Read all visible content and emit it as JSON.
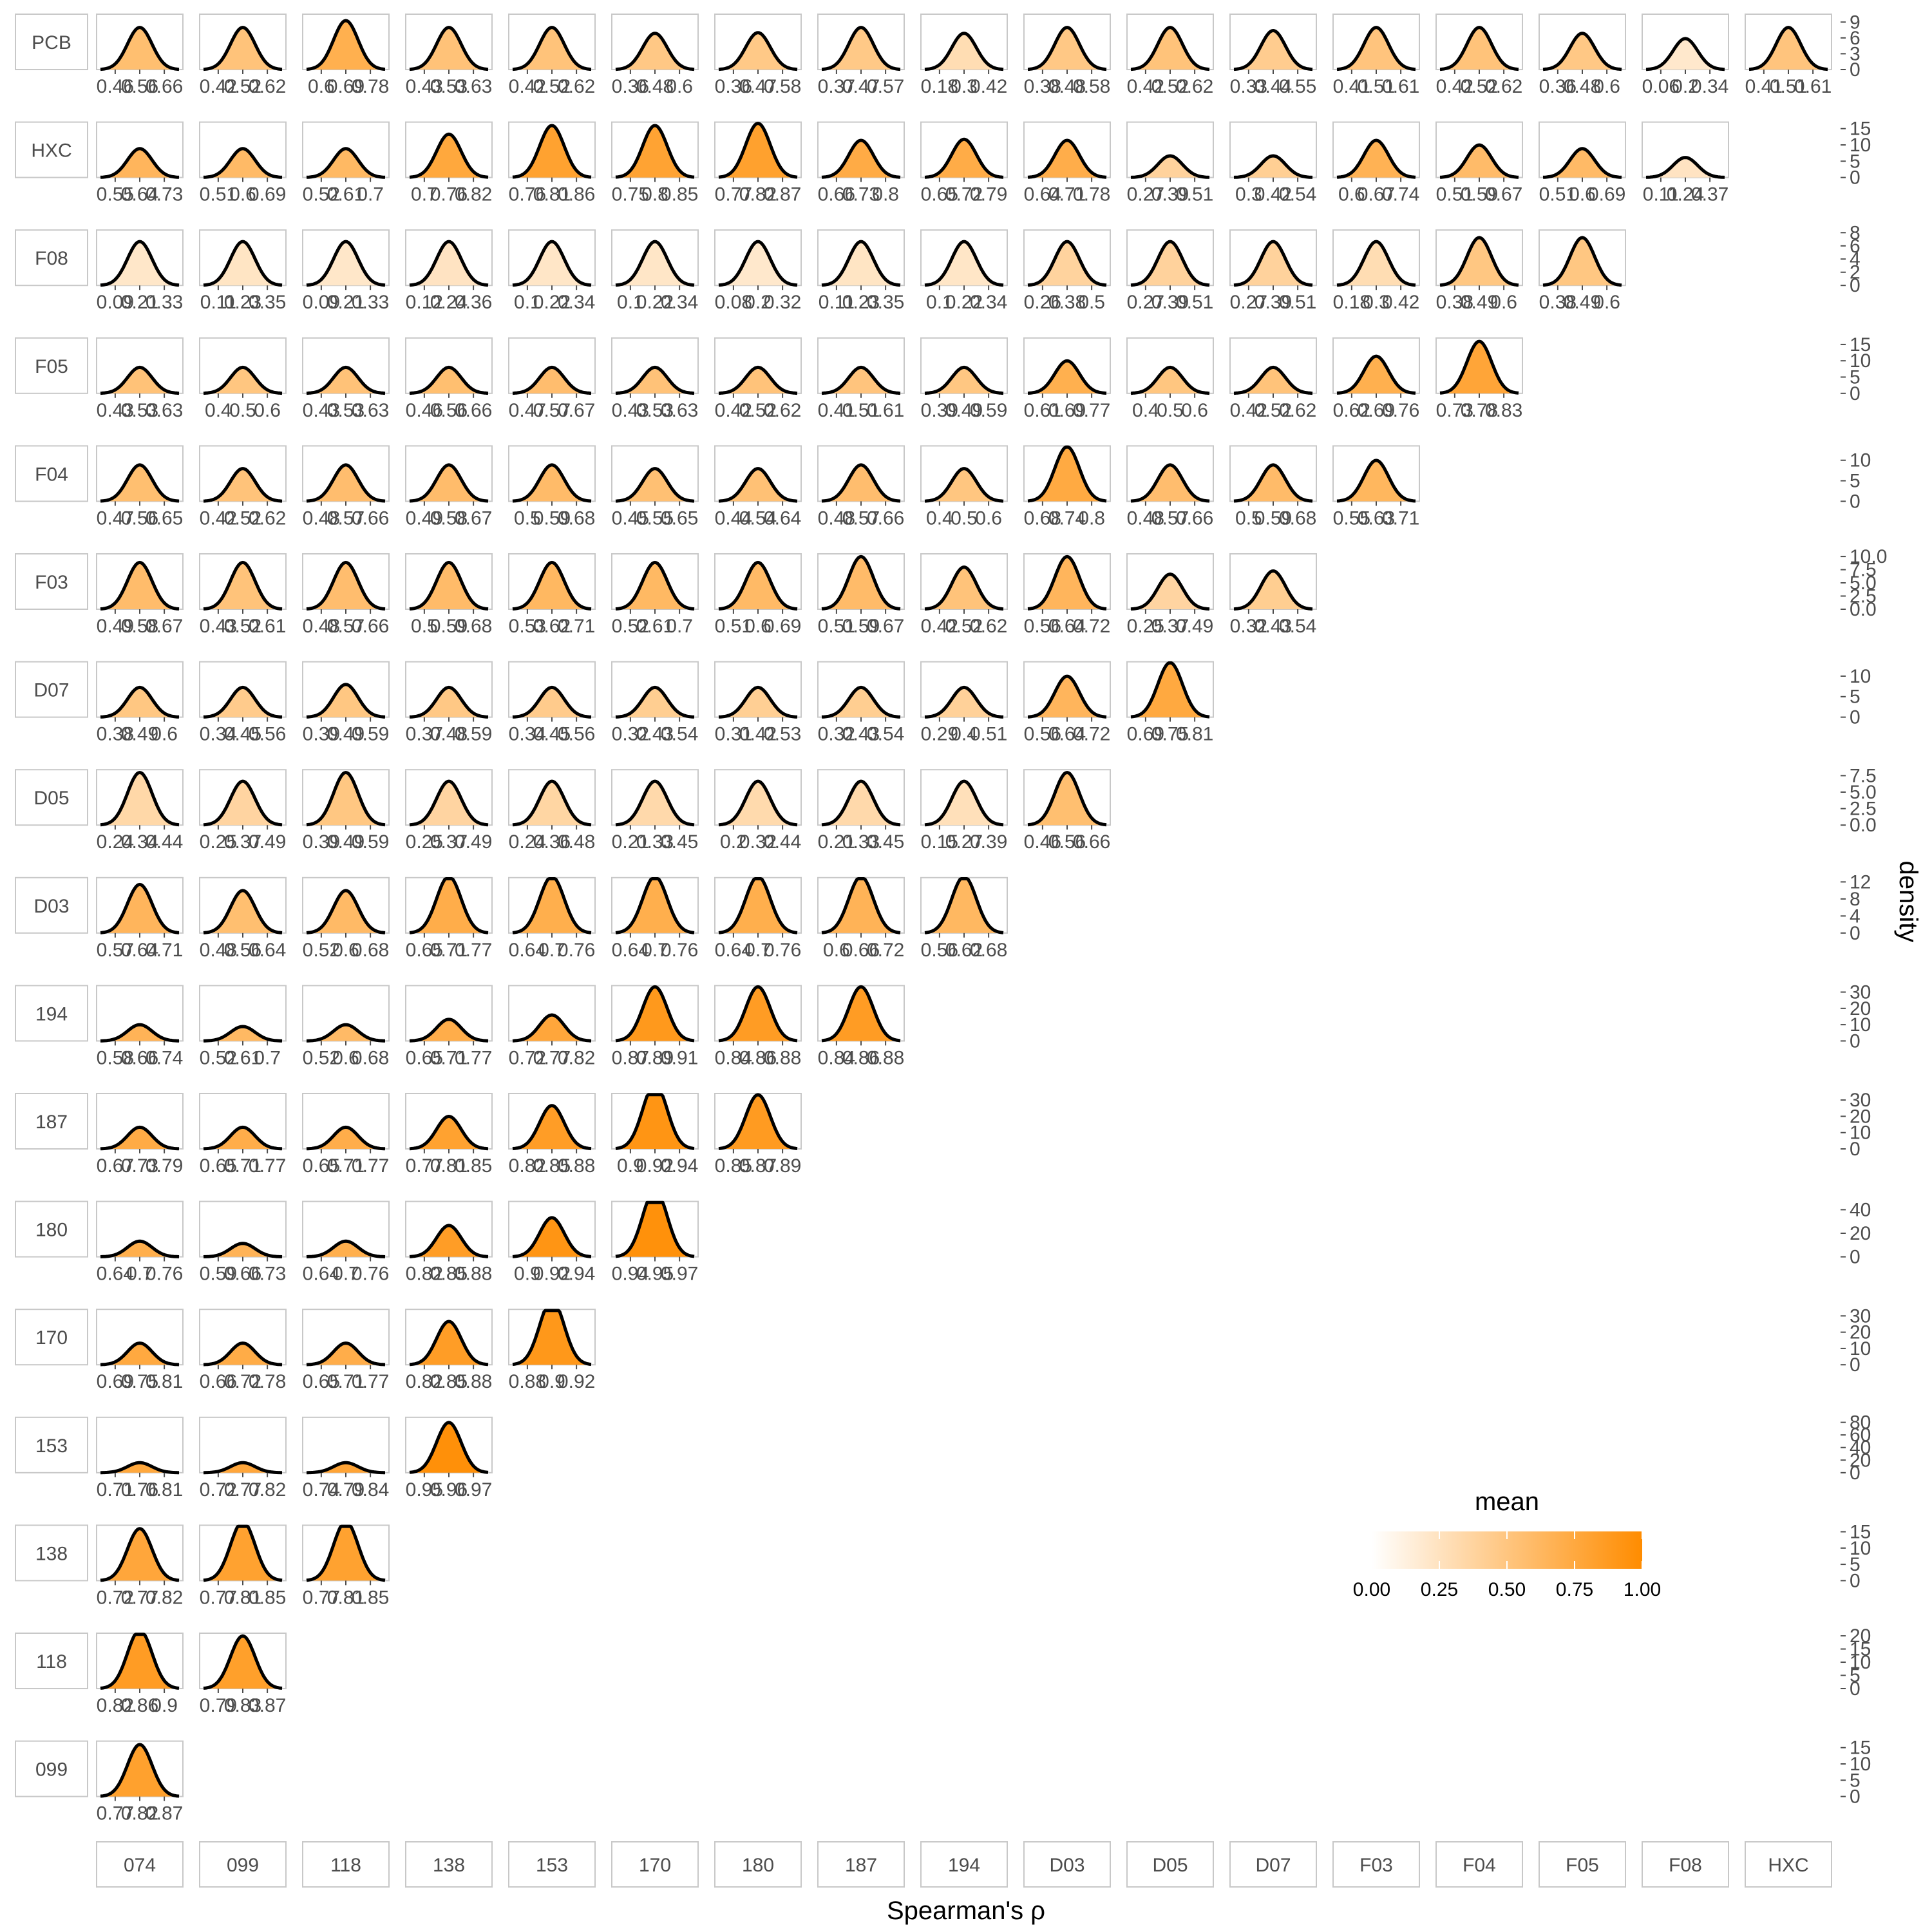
{
  "chart_data": {
    "type": "density",
    "xlabel": "Spearman's ρ",
    "ylabel": "density",
    "legend": {
      "title": "mean",
      "position": "bottom-right",
      "ticks": [
        "0.00",
        "0.25",
        "0.50",
        "0.75",
        "1.00"
      ],
      "low_color": "#ffffff",
      "high_color": "#ff8c00"
    },
    "columns": [
      "074",
      "099",
      "118",
      "138",
      "153",
      "170",
      "180",
      "187",
      "194",
      "D03",
      "D05",
      "D07",
      "F03",
      "F04",
      "F05",
      "F08",
      "HXC"
    ],
    "rows": [
      {
        "name": "PCB",
        "yticks": [
          "0",
          "3",
          "6",
          "9"
        ],
        "ymax": 10.5,
        "cells": [
          [
            0.56,
            0.05
          ],
          [
            0.52,
            0.05
          ],
          [
            0.69,
            0.043
          ],
          [
            0.53,
            0.05
          ],
          [
            0.52,
            0.05
          ],
          [
            0.48,
            0.058
          ],
          [
            0.47,
            0.057
          ],
          [
            0.47,
            0.05
          ],
          [
            0.3,
            0.058
          ],
          [
            0.48,
            0.05
          ],
          [
            0.52,
            0.05
          ],
          [
            0.44,
            0.054
          ],
          [
            0.51,
            0.05
          ],
          [
            0.52,
            0.05
          ],
          [
            0.48,
            0.058
          ],
          [
            0.2,
            0.068
          ],
          [
            0.51,
            0.05
          ]
        ]
      },
      {
        "name": "HXC",
        "yticks": [
          "0",
          "5",
          "10",
          "15"
        ],
        "ymax": 17,
        "cells": [
          [
            0.64,
            0.045
          ],
          [
            0.6,
            0.045
          ],
          [
            0.61,
            0.045
          ],
          [
            0.76,
            0.03
          ],
          [
            0.81,
            0.025
          ],
          [
            0.8,
            0.025
          ],
          [
            0.82,
            0.024
          ],
          [
            0.73,
            0.035
          ],
          [
            0.72,
            0.034
          ],
          [
            0.71,
            0.035
          ],
          [
            0.39,
            0.06
          ],
          [
            0.42,
            0.06
          ],
          [
            0.67,
            0.035
          ],
          [
            0.59,
            0.04
          ],
          [
            0.6,
            0.045
          ],
          [
            0.24,
            0.065
          ]
        ]
      },
      {
        "name": "F08",
        "yticks": [
          "0",
          "2",
          "4",
          "6",
          "8"
        ],
        "ymax": 8.4,
        "cells": [
          [
            0.21,
            0.06
          ],
          [
            0.23,
            0.06
          ],
          [
            0.21,
            0.06
          ],
          [
            0.24,
            0.06
          ],
          [
            0.22,
            0.06
          ],
          [
            0.22,
            0.06
          ],
          [
            0.2,
            0.06
          ],
          [
            0.23,
            0.06
          ],
          [
            0.22,
            0.06
          ],
          [
            0.38,
            0.06
          ],
          [
            0.39,
            0.06
          ],
          [
            0.39,
            0.06
          ],
          [
            0.3,
            0.06
          ],
          [
            0.49,
            0.055
          ],
          [
            0.49,
            0.055
          ]
        ]
      },
      {
        "name": "F05",
        "yticks": [
          "0",
          "5",
          "10",
          "15"
        ],
        "ymax": 17,
        "cells": [
          [
            0.53,
            0.05
          ],
          [
            0.5,
            0.05
          ],
          [
            0.53,
            0.05
          ],
          [
            0.56,
            0.05
          ],
          [
            0.57,
            0.05
          ],
          [
            0.53,
            0.05
          ],
          [
            0.52,
            0.05
          ],
          [
            0.51,
            0.05
          ],
          [
            0.49,
            0.05
          ],
          [
            0.69,
            0.04
          ],
          [
            0.5,
            0.05
          ],
          [
            0.52,
            0.05
          ],
          [
            0.69,
            0.035
          ],
          [
            0.78,
            0.025
          ]
        ]
      },
      {
        "name": "F04",
        "yticks": [
          "0",
          "5",
          "10"
        ],
        "ymax": 13.5,
        "cells": [
          [
            0.56,
            0.045
          ],
          [
            0.52,
            0.05
          ],
          [
            0.57,
            0.045
          ],
          [
            0.58,
            0.045
          ],
          [
            0.59,
            0.045
          ],
          [
            0.55,
            0.05
          ],
          [
            0.54,
            0.05
          ],
          [
            0.57,
            0.045
          ],
          [
            0.5,
            0.05
          ],
          [
            0.74,
            0.03
          ],
          [
            0.57,
            0.045
          ],
          [
            0.59,
            0.045
          ],
          [
            0.63,
            0.04
          ]
        ]
      },
      {
        "name": "F03",
        "yticks": [
          "0.0",
          "2.5",
          "5.0",
          "7.5",
          "10.0"
        ],
        "ymax": 10.5,
        "cells": [
          [
            0.58,
            0.045
          ],
          [
            0.52,
            0.045
          ],
          [
            0.57,
            0.045
          ],
          [
            0.59,
            0.045
          ],
          [
            0.62,
            0.045
          ],
          [
            0.61,
            0.045
          ],
          [
            0.6,
            0.045
          ],
          [
            0.59,
            0.04
          ],
          [
            0.52,
            0.05
          ],
          [
            0.64,
            0.04
          ],
          [
            0.37,
            0.06
          ],
          [
            0.43,
            0.055
          ]
        ]
      },
      {
        "name": "D07",
        "yticks": [
          "0",
          "5",
          "10"
        ],
        "ymax": 13.5,
        "cells": [
          [
            0.49,
            0.055
          ],
          [
            0.45,
            0.055
          ],
          [
            0.49,
            0.05
          ],
          [
            0.48,
            0.055
          ],
          [
            0.45,
            0.055
          ],
          [
            0.43,
            0.055
          ],
          [
            0.42,
            0.055
          ],
          [
            0.43,
            0.055
          ],
          [
            0.4,
            0.055
          ],
          [
            0.64,
            0.04
          ],
          [
            0.75,
            0.03
          ]
        ]
      },
      {
        "name": "D05",
        "yticks": [
          "0.0",
          "2.5",
          "5.0",
          "7.5"
        ],
        "ymax": 8.4,
        "cells": [
          [
            0.34,
            0.05
          ],
          [
            0.37,
            0.06
          ],
          [
            0.49,
            0.05
          ],
          [
            0.37,
            0.06
          ],
          [
            0.36,
            0.06
          ],
          [
            0.33,
            0.06
          ],
          [
            0.32,
            0.06
          ],
          [
            0.33,
            0.06
          ],
          [
            0.27,
            0.06
          ],
          [
            0.56,
            0.05
          ]
        ]
      },
      {
        "name": "D03",
        "yticks": [
          "0",
          "4",
          "8",
          "12"
        ],
        "ymax": 13,
        "cells": [
          [
            0.64,
            0.035
          ],
          [
            0.56,
            0.04
          ],
          [
            0.6,
            0.04
          ],
          [
            0.71,
            0.03
          ],
          [
            0.7,
            0.03
          ],
          [
            0.7,
            0.03
          ],
          [
            0.7,
            0.03
          ],
          [
            0.66,
            0.03
          ],
          [
            0.62,
            0.03
          ]
        ]
      },
      {
        "name": "194",
        "yticks": [
          "0",
          "10",
          "20",
          "30"
        ],
        "ymax": 34,
        "cells": [
          [
            0.66,
            0.04
          ],
          [
            0.61,
            0.045
          ],
          [
            0.6,
            0.04
          ],
          [
            0.71,
            0.03
          ],
          [
            0.77,
            0.025
          ],
          [
            0.89,
            0.012
          ],
          [
            0.86,
            0.012
          ],
          [
            0.86,
            0.012
          ]
        ]
      },
      {
        "name": "187",
        "yticks": [
          "0",
          "10",
          "20",
          "30"
        ],
        "ymax": 34,
        "cells": [
          [
            0.73,
            0.03
          ],
          [
            0.71,
            0.03
          ],
          [
            0.71,
            0.03
          ],
          [
            0.81,
            0.02
          ],
          [
            0.85,
            0.015
          ],
          [
            0.92,
            0.01
          ],
          [
            0.87,
            0.012
          ]
        ]
      },
      {
        "name": "180",
        "yticks": [
          "0",
          "20",
          "40"
        ],
        "ymax": 47,
        "cells": [
          [
            0.7,
            0.03
          ],
          [
            0.66,
            0.035
          ],
          [
            0.7,
            0.03
          ],
          [
            0.85,
            0.015
          ],
          [
            0.92,
            0.012
          ],
          [
            0.955,
            0.007
          ]
        ]
      },
      {
        "name": "170",
        "yticks": [
          "0",
          "10",
          "20",
          "30"
        ],
        "ymax": 34,
        "cells": [
          [
            0.75,
            0.03
          ],
          [
            0.72,
            0.03
          ],
          [
            0.71,
            0.03
          ],
          [
            0.85,
            0.015
          ],
          [
            0.9,
            0.01
          ]
        ]
      },
      {
        "name": "153",
        "yticks": [
          "0",
          "20",
          "40",
          "60",
          "80"
        ],
        "ymax": 88,
        "cells": [
          [
            0.76,
            0.025
          ],
          [
            0.77,
            0.025
          ],
          [
            0.79,
            0.025
          ],
          [
            0.965,
            0.005
          ]
        ]
      },
      {
        "name": "138",
        "yticks": [
          "0",
          "5",
          "10",
          "15"
        ],
        "ymax": 17,
        "cells": [
          [
            0.77,
            0.025
          ],
          [
            0.81,
            0.022
          ],
          [
            0.81,
            0.022
          ]
        ]
      },
      {
        "name": "118",
        "yticks": [
          "0",
          "5",
          "10",
          "15",
          "20"
        ],
        "ymax": 21,
        "cells": [
          [
            0.86,
            0.018
          ],
          [
            0.83,
            0.02
          ]
        ]
      },
      {
        "name": "099",
        "yticks": [
          "0",
          "5",
          "10",
          "15"
        ],
        "ymax": 17,
        "cells": [
          [
            0.82,
            0.025
          ]
        ]
      }
    ]
  }
}
